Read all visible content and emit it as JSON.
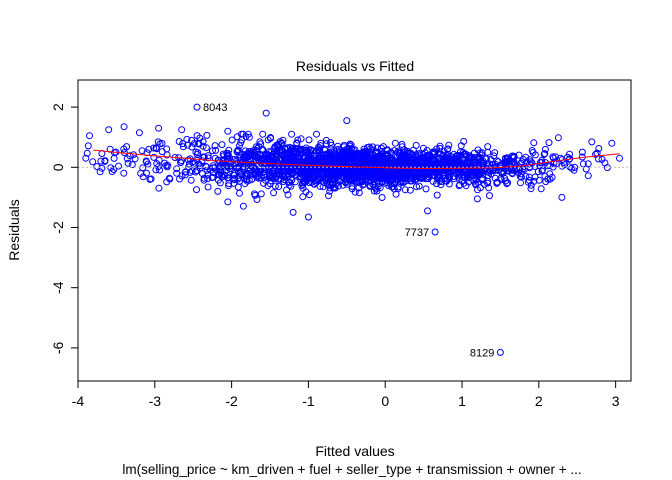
{
  "chart_data": {
    "type": "scatter",
    "title": "Residuals vs Fitted",
    "xlabel": "Fitted values",
    "subtitle": "lm(selling_price ~ km_driven + fuel + seller_type + transmission + owner +  ...",
    "ylabel": "Residuals",
    "xlim": [
      -4.0,
      3.2
    ],
    "ylim": [
      -7.1,
      2.9
    ],
    "xticks": [
      "-4",
      "-3",
      "-2",
      "-1",
      "0",
      "1",
      "2",
      "3"
    ],
    "yticks": [
      "-6",
      "-4",
      "-2",
      "0",
      "2"
    ],
    "grid": false,
    "reference_line_y": 0,
    "colors": {
      "points": "#0000ff",
      "smoother": "#ff0000",
      "reference": "#bebebe"
    },
    "labeled_points": [
      {
        "label": "8043",
        "x": -2.45,
        "y": 2.0
      },
      {
        "label": "7737",
        "x": 0.65,
        "y": -2.15
      },
      {
        "label": "8129",
        "x": 1.5,
        "y": -6.15
      }
    ],
    "outlier_points": [
      {
        "x": -1.55,
        "y": 1.8
      },
      {
        "x": -0.5,
        "y": 1.55
      },
      {
        "x": -3.85,
        "y": 1.05
      },
      {
        "x": -3.6,
        "y": 1.25
      },
      {
        "x": -3.4,
        "y": 1.35
      },
      {
        "x": -3.2,
        "y": 1.15
      },
      {
        "x": -2.95,
        "y": 1.3
      },
      {
        "x": -2.65,
        "y": 1.25
      },
      {
        "x": -2.05,
        "y": 1.2
      },
      {
        "x": 0.55,
        "y": -1.45
      },
      {
        "x": 1.2,
        "y": -1.05
      },
      {
        "x": 2.3,
        "y": -1.0
      },
      {
        "x": 1.9,
        "y": -0.6
      },
      {
        "x": 3.05,
        "y": 0.3
      },
      {
        "x": 2.95,
        "y": 0.8
      },
      {
        "x": -1.0,
        "y": -1.65
      },
      {
        "x": -2.05,
        "y": -1.15
      },
      {
        "x": -1.2,
        "y": -1.5
      }
    ],
    "cloud_profile": [
      {
        "x": -3.8,
        "n": 10,
        "sd": 0.3
      },
      {
        "x": -3.5,
        "n": 14,
        "sd": 0.32
      },
      {
        "x": -3.2,
        "n": 16,
        "sd": 0.36
      },
      {
        "x": -2.9,
        "n": 24,
        "sd": 0.38
      },
      {
        "x": -2.6,
        "n": 34,
        "sd": 0.4
      },
      {
        "x": -2.3,
        "n": 50,
        "sd": 0.42
      },
      {
        "x": -2.0,
        "n": 80,
        "sd": 0.42
      },
      {
        "x": -1.7,
        "n": 110,
        "sd": 0.4
      },
      {
        "x": -1.4,
        "n": 150,
        "sd": 0.38
      },
      {
        "x": -1.1,
        "n": 200,
        "sd": 0.36
      },
      {
        "x": -0.8,
        "n": 240,
        "sd": 0.34
      },
      {
        "x": -0.5,
        "n": 260,
        "sd": 0.32
      },
      {
        "x": -0.2,
        "n": 260,
        "sd": 0.3
      },
      {
        "x": 0.1,
        "n": 240,
        "sd": 0.3
      },
      {
        "x": 0.4,
        "n": 200,
        "sd": 0.3
      },
      {
        "x": 0.7,
        "n": 160,
        "sd": 0.3
      },
      {
        "x": 1.0,
        "n": 120,
        "sd": 0.28
      },
      {
        "x": 1.3,
        "n": 90,
        "sd": 0.28
      },
      {
        "x": 1.6,
        "n": 60,
        "sd": 0.28
      },
      {
        "x": 1.9,
        "n": 40,
        "sd": 0.3
      },
      {
        "x": 2.2,
        "n": 25,
        "sd": 0.3
      },
      {
        "x": 2.5,
        "n": 14,
        "sd": 0.3
      },
      {
        "x": 2.8,
        "n": 8,
        "sd": 0.3
      }
    ],
    "smoother": {
      "x": [
        -3.8,
        -3.4,
        -3.0,
        -2.6,
        -2.2,
        -1.8,
        -1.4,
        -1.0,
        -0.6,
        -0.2,
        0.2,
        0.6,
        1.0,
        1.4,
        1.8,
        2.2,
        2.6,
        3.05
      ],
      "y": [
        0.57,
        0.47,
        0.38,
        0.3,
        0.22,
        0.16,
        0.11,
        0.07,
        0.03,
        0.0,
        -0.03,
        -0.04,
        -0.03,
        -0.02,
        0.05,
        0.2,
        0.34,
        0.45
      ]
    }
  }
}
